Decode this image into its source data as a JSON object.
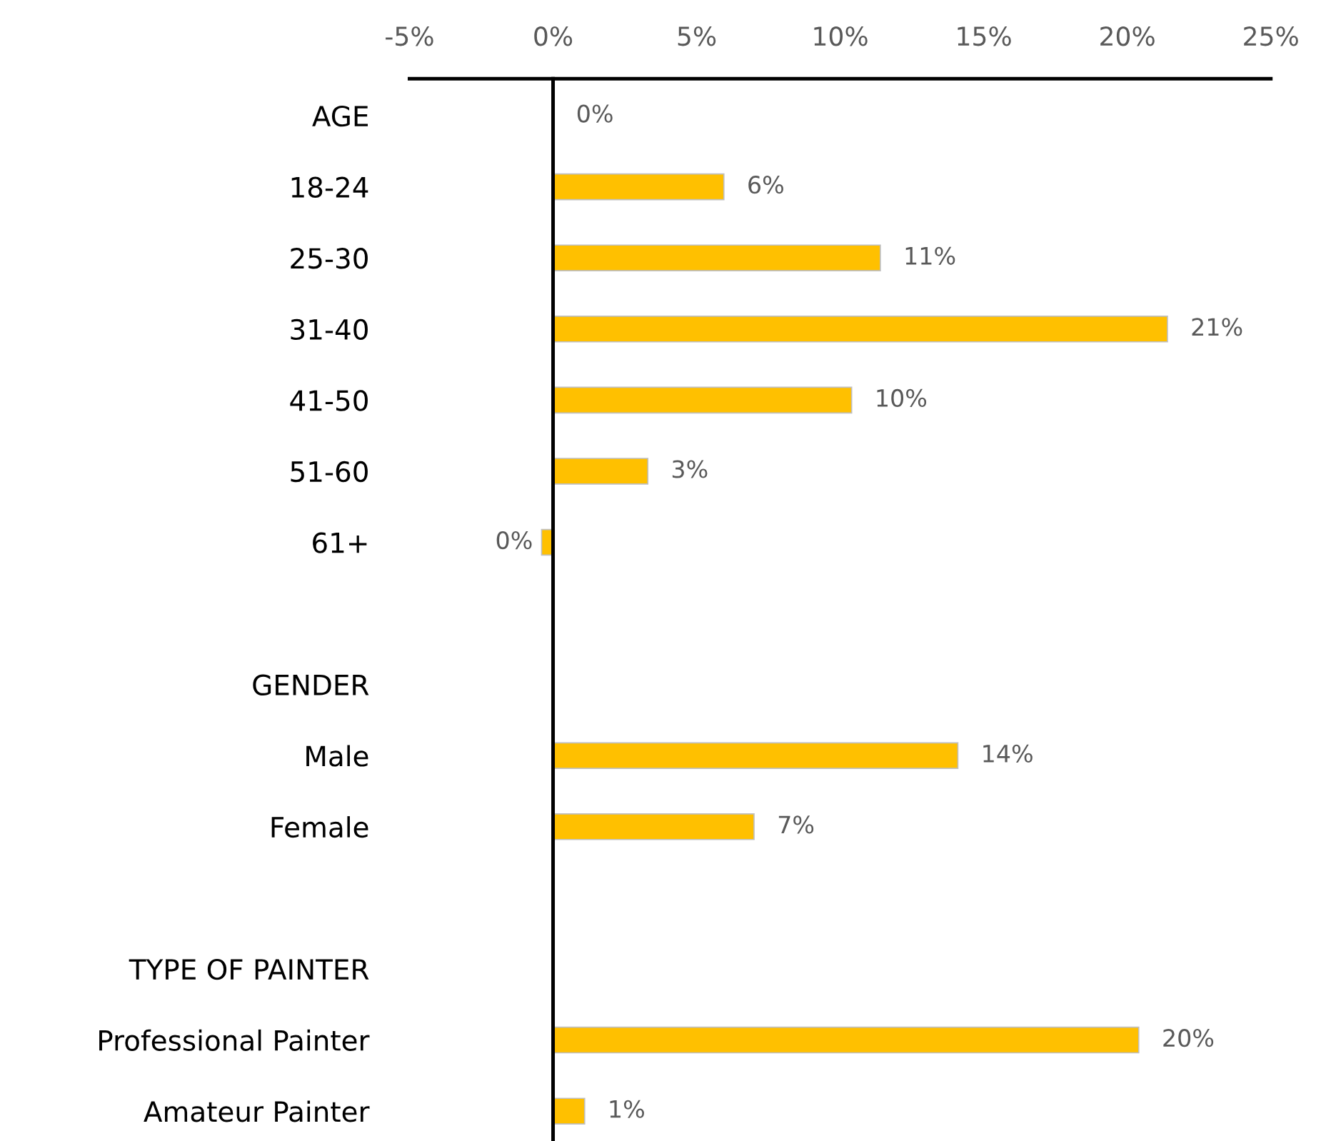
{
  "chart_data": {
    "type": "bar",
    "orientation": "horizontal",
    "categories": [
      "AGE",
      "18-24",
      "25-30",
      "31-40",
      "41-50",
      "51-60",
      "61+",
      null,
      "GENDER",
      "Male",
      "Female",
      null,
      "TYPE OF PAINTER",
      "Professional Painter",
      "Amateur Painter"
    ],
    "values": [
      0,
      5.95,
      11.4,
      21.4,
      10.4,
      3.3,
      -0.4,
      null,
      null,
      14.1,
      7.0,
      null,
      null,
      20.4,
      1.1
    ],
    "value_labels": [
      "0%",
      "6%",
      "11%",
      "21%",
      "10%",
      "3%",
      "0%",
      null,
      null,
      "14%",
      "7%",
      null,
      null,
      "20%",
      "1%"
    ],
    "color": "#ffc000",
    "xlim": [
      -5,
      25
    ],
    "xticks": [
      {
        "value": -5,
        "label": "-5%"
      },
      {
        "value": 0,
        "label": "0%"
      },
      {
        "value": 5,
        "label": "5%"
      },
      {
        "value": 10,
        "label": "10%"
      },
      {
        "value": 15,
        "label": "15%"
      },
      {
        "value": 20,
        "label": "20%"
      },
      {
        "value": 25,
        "label": "25%"
      }
    ],
    "legend": false
  }
}
